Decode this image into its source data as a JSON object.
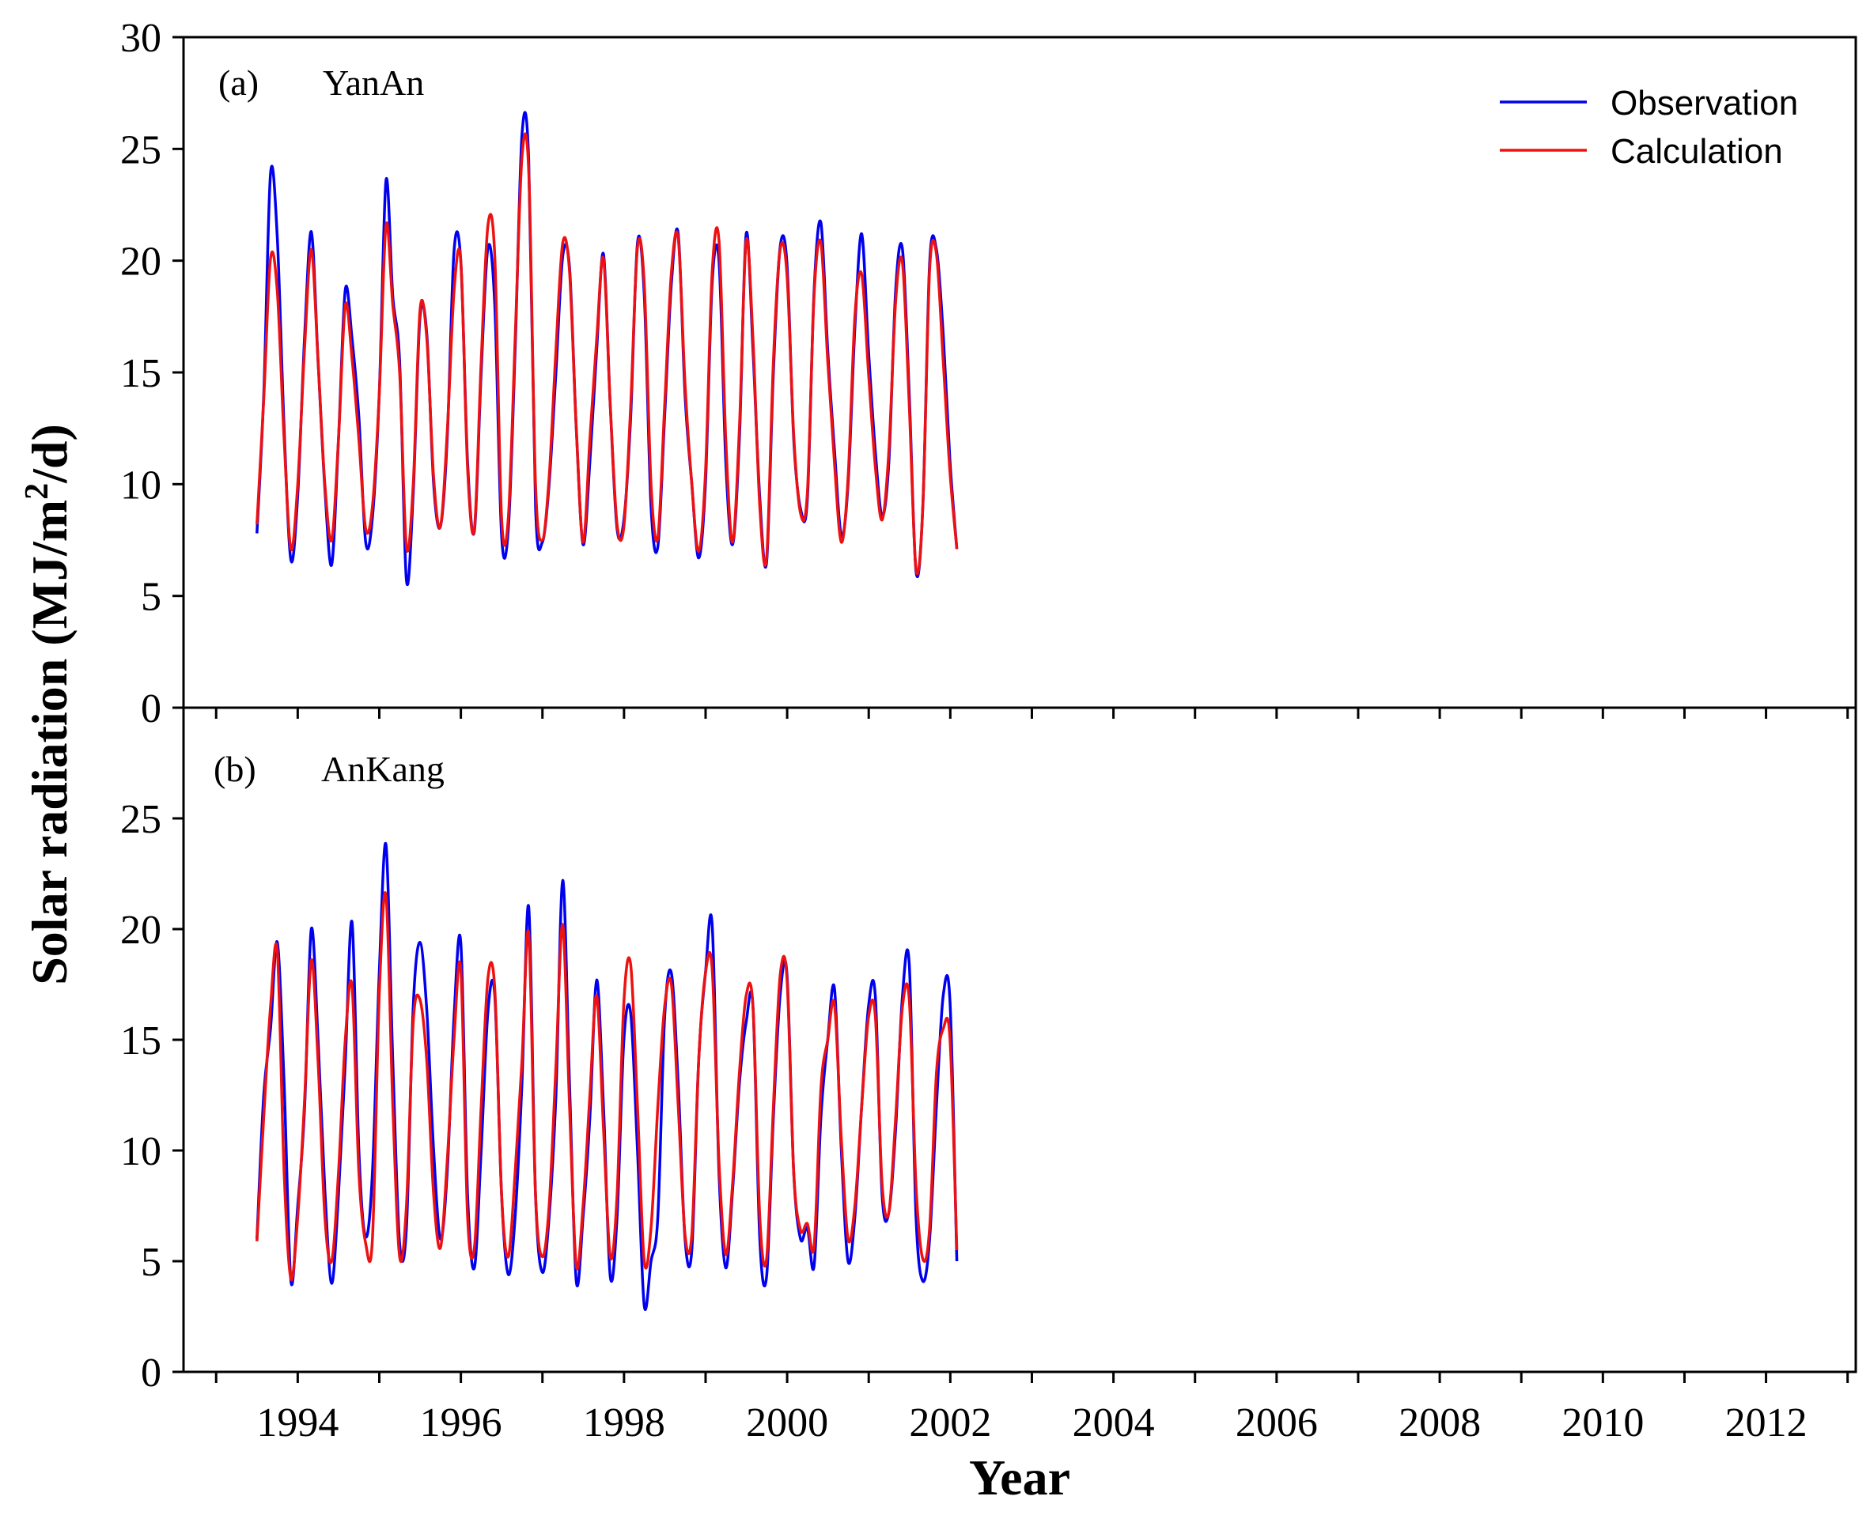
{
  "chart_data": {
    "type": "line",
    "xlabel": "Year",
    "ylabel": "Solar radiation (MJ/m2/d)",
    "ylabel_parts": {
      "main": "Solar radiation (MJ/m",
      "sup": "2",
      "tail": "/d)"
    },
    "x_ticks": [
      "1994",
      "1996",
      "1998",
      "2000",
      "2002",
      "2004",
      "2006",
      "2008",
      "2010",
      "2012"
    ],
    "x_range": [
      1992.6,
      2013.1
    ],
    "x_start": 1993.5,
    "x_step": 0.0833,
    "legend": {
      "observation": "Observation",
      "calculation": "Calculation"
    },
    "colors": {
      "observation": "#0000ee",
      "calculation": "#ee1111"
    },
    "panels": [
      {
        "panel_label": "(a)",
        "station": "YanAn",
        "ylim": [
          0,
          30
        ],
        "y_ticks": [
          "0",
          "5",
          "10",
          "15",
          "20",
          "25",
          "30"
        ],
        "series": [
          {
            "name": "Observation",
            "values": [
              7.8,
              14.0,
              23.9,
              21.0,
              12.5,
              6.6,
              9.5,
              16.5,
              21.3,
              15.5,
              9.8,
              6.4,
              12.0,
              18.7,
              16.5,
              13.0,
              7.4,
              8.5,
              14.0,
              23.6,
              18.4,
              15.5,
              5.7,
              9.6,
              17.5,
              16.7,
              10.0,
              8.1,
              12.0,
              20.4,
              20.0,
              11.0,
              7.9,
              15.0,
              20.6,
              18.0,
              7.7,
              8.0,
              16.0,
              25.6,
              24.5,
              9.0,
              7.4,
              10.0,
              15.0,
              20.2,
              19.7,
              12.5,
              7.3,
              11.0,
              16.0,
              20.3,
              13.5,
              8.0,
              8.4,
              13.0,
              20.8,
              18.5,
              9.0,
              7.2,
              13.0,
              19.0,
              21.2,
              14.0,
              10.0,
              6.7,
              10.0,
              19.0,
              20.0,
              11.0,
              7.3,
              12.0,
              21.2,
              16.0,
              9.4,
              6.5,
              15.0,
              20.6,
              19.9,
              12.0,
              8.9,
              9.3,
              18.7,
              21.7,
              16.0,
              11.5,
              7.7,
              10.0,
              17.0,
              21.2,
              16.0,
              11.5,
              8.6,
              11.0,
              18.7,
              20.5,
              14.0,
              6.1,
              9.0,
              19.9,
              20.5,
              16.7,
              11.0,
              7.1
            ]
          },
          {
            "name": "Calculation",
            "values": [
              8.2,
              13.8,
              20.1,
              18.6,
              12.0,
              7.1,
              10.0,
              16.0,
              20.5,
              15.5,
              10.0,
              7.5,
              12.0,
              18.0,
              15.6,
              12.0,
              8.0,
              9.0,
              14.0,
              21.6,
              18.0,
              15.0,
              7.2,
              10.0,
              17.8,
              16.5,
              10.3,
              8.1,
              12.3,
              18.6,
              20.0,
              10.7,
              8.0,
              15.5,
              21.6,
              20.2,
              8.5,
              8.5,
              16.5,
              24.6,
              24.0,
              10.0,
              7.5,
              10.3,
              16.0,
              20.8,
              19.5,
              12.5,
              7.4,
              12.0,
              16.5,
              20.1,
              13.5,
              8.2,
              8.1,
              13.5,
              20.6,
              19.0,
              10.0,
              7.6,
              13.5,
              19.5,
              21.0,
              14.5,
              10.0,
              7.0,
              10.5,
              19.5,
              20.9,
              12.0,
              7.4,
              12.5,
              20.9,
              16.5,
              9.0,
              6.7,
              15.5,
              20.5,
              19.4,
              12.2,
              8.7,
              9.6,
              18.5,
              20.8,
              15.5,
              10.9,
              7.4,
              10.3,
              17.5,
              19.4,
              15.0,
              10.8,
              8.4,
              11.5,
              18.2,
              19.9,
              13.5,
              6.2,
              9.0,
              19.6,
              20.3,
              15.5,
              10.5,
              7.1
            ]
          }
        ]
      },
      {
        "panel_label": "(b)",
        "station": "AnKang",
        "ylim": [
          0,
          30
        ],
        "y_ticks": [
          "0",
          "5",
          "10",
          "15",
          "20",
          "25"
        ],
        "series": [
          {
            "name": "Observation",
            "values": [
              6.0,
              12.5,
              15.5,
              19.4,
              13.0,
              4.1,
              7.5,
              11.8,
              20.0,
              15.0,
              8.2,
              4.0,
              8.0,
              14.0,
              20.3,
              10.0,
              6.1,
              9.0,
              18.0,
              23.8,
              14.0,
              5.8,
              6.5,
              16.5,
              19.4,
              16.3,
              10.0,
              6.0,
              9.0,
              16.0,
              19.4,
              8.0,
              4.7,
              10.0,
              16.3,
              17.0,
              8.0,
              4.4,
              7.0,
              13.0,
              21.0,
              8.0,
              4.5,
              7.0,
              12.5,
              22.2,
              13.0,
              4.1,
              7.0,
              11.5,
              17.7,
              12.0,
              4.3,
              7.0,
              15.0,
              16.2,
              10.0,
              3.0,
              5.0,
              7.0,
              16.0,
              18.0,
              13.0,
              6.0,
              5.5,
              14.0,
              18.0,
              20.2,
              9.0,
              4.7,
              8.2,
              13.0,
              15.8,
              16.5,
              6.0,
              4.3,
              11.5,
              17.0,
              18.0,
              9.0,
              6.0,
              6.5,
              4.8,
              11.5,
              15.0,
              17.3,
              10.0,
              5.0,
              7.0,
              12.0,
              16.5,
              17.0,
              8.0,
              7.2,
              11.0,
              17.0,
              18.4,
              7.0,
              4.1,
              6.0,
              12.0,
              17.0,
              16.7,
              5.0
            ]
          },
          {
            "name": "Calculation",
            "values": [
              5.9,
              11.5,
              16.5,
              19.0,
              9.0,
              4.2,
              7.0,
              12.2,
              18.6,
              14.0,
              7.0,
              5.0,
              9.0,
              15.0,
              17.4,
              9.0,
              5.8,
              6.0,
              17.0,
              21.5,
              12.0,
              5.2,
              7.5,
              15.8,
              16.8,
              14.0,
              8.0,
              5.6,
              9.5,
              15.0,
              18.2,
              7.0,
              5.6,
              12.0,
              17.8,
              17.3,
              8.0,
              5.2,
              9.0,
              14.0,
              19.8,
              8.0,
              5.2,
              7.5,
              13.8,
              20.2,
              12.0,
              4.8,
              7.5,
              12.5,
              17.0,
              11.0,
              5.2,
              8.0,
              16.7,
              18.4,
              12.0,
              5.0,
              6.5,
              12.0,
              16.5,
              17.5,
              12.0,
              6.2,
              6.2,
              14.0,
              18.0,
              18.2,
              9.5,
              5.3,
              8.5,
              13.5,
              17.0,
              16.5,
              7.0,
              5.1,
              12.0,
              17.9,
              17.8,
              9.0,
              6.4,
              6.7,
              5.7,
              12.8,
              15.0,
              16.6,
              10.5,
              6.0,
              7.5,
              12.0,
              16.0,
              16.1,
              8.5,
              7.2,
              11.5,
              16.5,
              16.8,
              8.4,
              5.1,
              6.5,
              13.5,
              15.5,
              15.0,
              5.5
            ]
          }
        ]
      }
    ]
  }
}
